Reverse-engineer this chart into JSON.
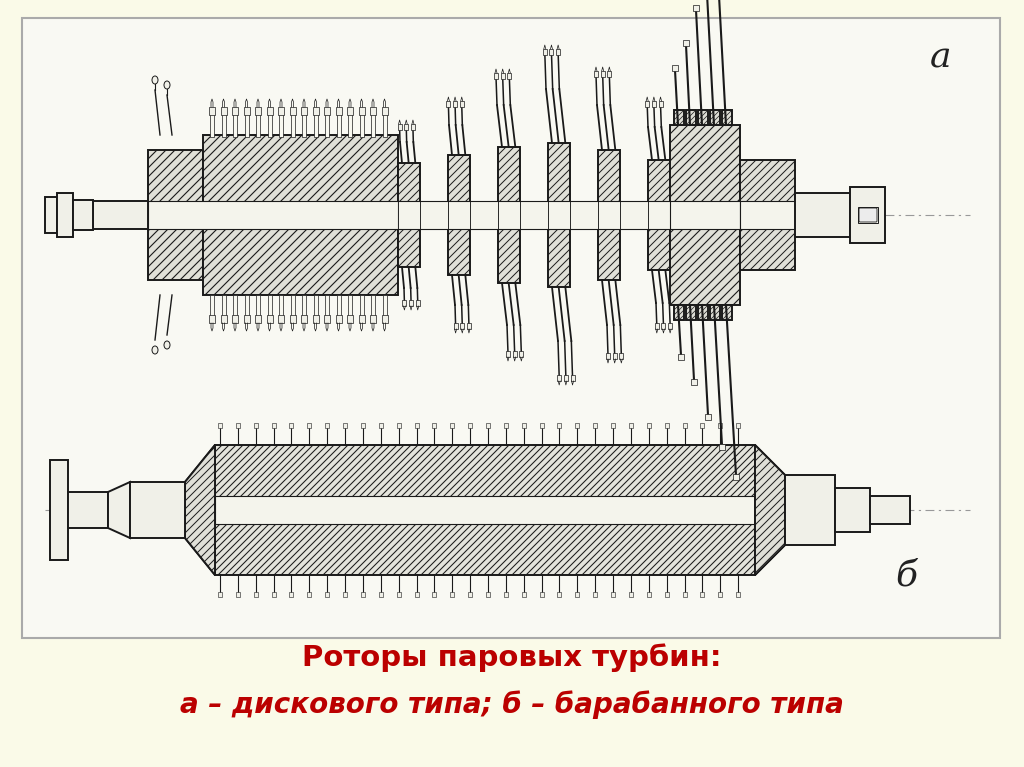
{
  "bg_outer": "#fafae8",
  "bg_panel": "#f8f8f0",
  "lc": "#1a1a1a",
  "hatch_bg": "#e8e8e0",
  "label_a": "а",
  "label_b": "б",
  "title_line1": "Роторы паровых турбин:",
  "title_line2": "а – дискового типа; б – барабанного типа",
  "title_color": "#bb0000",
  "title_fs": 21,
  "sub_fs": 20,
  "label_fs": 22
}
